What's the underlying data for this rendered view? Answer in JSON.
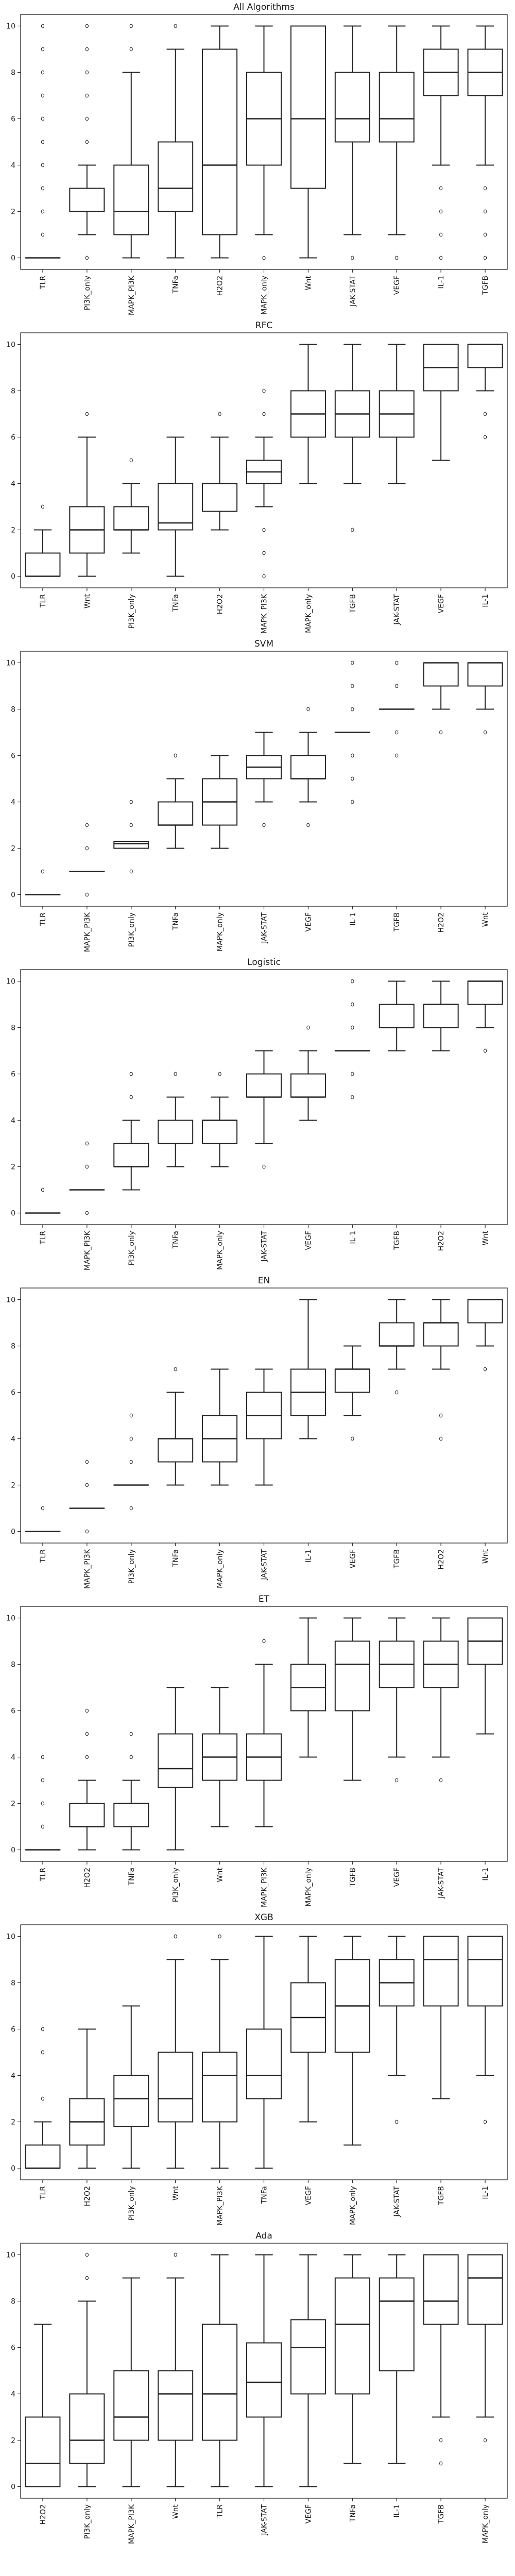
{
  "chart_data": [
    {
      "type": "box",
      "title": "All Algorithms",
      "ylim": [
        -0.5,
        10.5
      ],
      "yticks": [
        0,
        2,
        4,
        6,
        8,
        10
      ],
      "boxes": [
        {
          "label": "TLR",
          "whislo": 0,
          "q1": 0,
          "med": 0,
          "q3": 0,
          "whishi": 0,
          "fliers": [
            1,
            2,
            3,
            4,
            5,
            6,
            7,
            8,
            9,
            10
          ]
        },
        {
          "label": "PI3K_only",
          "whislo": 1,
          "q1": 2,
          "med": 2,
          "q3": 3,
          "whishi": 4,
          "fliers": [
            0,
            5,
            6,
            7,
            8,
            9,
            10
          ]
        },
        {
          "label": "MAPK_PI3K",
          "whislo": 0,
          "q1": 1,
          "med": 2,
          "q3": 4,
          "whishi": 8,
          "fliers": [
            9,
            10
          ]
        },
        {
          "label": "TNFa",
          "whislo": 0,
          "q1": 2,
          "med": 3,
          "q3": 5,
          "whishi": 9,
          "fliers": [
            10
          ]
        },
        {
          "label": "H2O2",
          "whislo": 0,
          "q1": 1,
          "med": 4,
          "q3": 9,
          "whishi": 10,
          "fliers": []
        },
        {
          "label": "MAPK_only",
          "whislo": 1,
          "q1": 4,
          "med": 6,
          "q3": 8,
          "whishi": 10,
          "fliers": [
            0
          ]
        },
        {
          "label": "Wnt",
          "whislo": 0,
          "q1": 3,
          "med": 6,
          "q3": 10,
          "whishi": 10,
          "fliers": []
        },
        {
          "label": "JAK-STAT",
          "whislo": 1,
          "q1": 5,
          "med": 6,
          "q3": 8,
          "whishi": 10,
          "fliers": [
            0
          ]
        },
        {
          "label": "VEGF",
          "whislo": 1,
          "q1": 5,
          "med": 6,
          "q3": 8,
          "whishi": 10,
          "fliers": [
            0
          ]
        },
        {
          "label": "IL-1",
          "whislo": 4,
          "q1": 7,
          "med": 8,
          "q3": 9,
          "whishi": 10,
          "fliers": [
            0,
            1,
            2,
            3
          ]
        },
        {
          "label": "TGFB",
          "whislo": 4,
          "q1": 7,
          "med": 8,
          "q3": 9,
          "whishi": 10,
          "fliers": [
            0,
            1,
            2,
            3
          ]
        }
      ]
    },
    {
      "type": "box",
      "title": "RFC",
      "ylim": [
        -0.5,
        10.5
      ],
      "yticks": [
        0,
        2,
        4,
        6,
        8,
        10
      ],
      "boxes": [
        {
          "label": "TLR",
          "whislo": 0,
          "q1": 0,
          "med": 0,
          "q3": 1,
          "whishi": 2,
          "fliers": [
            3
          ]
        },
        {
          "label": "Wnt",
          "whislo": 0,
          "q1": 1,
          "med": 2,
          "q3": 3,
          "whishi": 6,
          "fliers": [
            7
          ]
        },
        {
          "label": "PI3K_only",
          "whislo": 1,
          "q1": 2,
          "med": 2,
          "q3": 3,
          "whishi": 4,
          "fliers": [
            5
          ]
        },
        {
          "label": "TNFa",
          "whislo": 0,
          "q1": 2,
          "med": 2.3,
          "q3": 4,
          "whishi": 6,
          "fliers": []
        },
        {
          "label": "H2O2",
          "whislo": 2,
          "q1": 2.8,
          "med": 4,
          "q3": 4,
          "whishi": 6,
          "fliers": [
            7
          ]
        },
        {
          "label": "MAPK_PI3K",
          "whislo": 3,
          "q1": 4,
          "med": 4.5,
          "q3": 5,
          "whishi": 6,
          "fliers": [
            0,
            1,
            2,
            7,
            8
          ]
        },
        {
          "label": "MAPK_only",
          "whislo": 4,
          "q1": 6,
          "med": 7,
          "q3": 8,
          "whishi": 10,
          "fliers": []
        },
        {
          "label": "TGFB",
          "whislo": 4,
          "q1": 6,
          "med": 7,
          "q3": 8,
          "whishi": 10,
          "fliers": [
            2
          ]
        },
        {
          "label": "JAK-STAT",
          "whislo": 4,
          "q1": 6,
          "med": 7,
          "q3": 8,
          "whishi": 10,
          "fliers": []
        },
        {
          "label": "VEGF",
          "whislo": 5,
          "q1": 8,
          "med": 9,
          "q3": 10,
          "whishi": 10,
          "fliers": []
        },
        {
          "label": "IL-1",
          "whislo": 8,
          "q1": 9,
          "med": 10,
          "q3": 10,
          "whishi": 10,
          "fliers": [
            6,
            7
          ]
        }
      ]
    },
    {
      "type": "box",
      "title": "SVM",
      "ylim": [
        -0.5,
        10.5
      ],
      "yticks": [
        0,
        2,
        4,
        6,
        8,
        10
      ],
      "boxes": [
        {
          "label": "TLR",
          "whislo": 0,
          "q1": 0,
          "med": 0,
          "q3": 0,
          "whishi": 0,
          "fliers": [
            1
          ]
        },
        {
          "label": "MAPK_PI3K",
          "whislo": 1,
          "q1": 1,
          "med": 1,
          "q3": 1,
          "whishi": 1,
          "fliers": [
            0,
            2,
            3
          ]
        },
        {
          "label": "PI3K_only",
          "whislo": 2,
          "q1": 2,
          "med": 2.2,
          "q3": 2.3,
          "whishi": 2.3,
          "fliers": [
            1,
            3,
            4
          ]
        },
        {
          "label": "TNFa",
          "whislo": 2,
          "q1": 3,
          "med": 3,
          "q3": 4,
          "whishi": 5,
          "fliers": [
            6
          ]
        },
        {
          "label": "MAPK_only",
          "whislo": 2,
          "q1": 3,
          "med": 4,
          "q3": 5,
          "whishi": 6,
          "fliers": []
        },
        {
          "label": "JAK-STAT",
          "whislo": 4,
          "q1": 5,
          "med": 5.5,
          "q3": 6,
          "whishi": 7,
          "fliers": [
            3
          ]
        },
        {
          "label": "VEGF",
          "whislo": 4,
          "q1": 5,
          "med": 5,
          "q3": 6,
          "whishi": 7,
          "fliers": [
            3,
            8
          ]
        },
        {
          "label": "IL-1",
          "whislo": 7,
          "q1": 7,
          "med": 7,
          "q3": 7,
          "whishi": 7,
          "fliers": [
            4,
            5,
            6,
            8,
            9,
            10
          ]
        },
        {
          "label": "TGFB",
          "whislo": 8,
          "q1": 8,
          "med": 8,
          "q3": 8,
          "whishi": 8,
          "fliers": [
            6,
            7,
            9,
            10
          ]
        },
        {
          "label": "H2O2",
          "whislo": 8,
          "q1": 9,
          "med": 10,
          "q3": 10,
          "whishi": 10,
          "fliers": [
            7
          ]
        },
        {
          "label": "Wnt",
          "whislo": 8,
          "q1": 9,
          "med": 10,
          "q3": 10,
          "whishi": 10,
          "fliers": [
            7
          ]
        }
      ]
    },
    {
      "type": "box",
      "title": "Logistic",
      "ylim": [
        -0.5,
        10.5
      ],
      "yticks": [
        0,
        2,
        4,
        6,
        8,
        10
      ],
      "boxes": [
        {
          "label": "TLR",
          "whislo": 0,
          "q1": 0,
          "med": 0,
          "q3": 0,
          "whishi": 0,
          "fliers": [
            1
          ]
        },
        {
          "label": "MAPK_PI3K",
          "whislo": 1,
          "q1": 1,
          "med": 1,
          "q3": 1,
          "whishi": 1,
          "fliers": [
            0,
            2,
            3
          ]
        },
        {
          "label": "PI3K_only",
          "whislo": 1,
          "q1": 2,
          "med": 2,
          "q3": 3,
          "whishi": 4,
          "fliers": [
            5,
            6
          ]
        },
        {
          "label": "TNFa",
          "whislo": 2,
          "q1": 3,
          "med": 3,
          "q3": 4,
          "whishi": 5,
          "fliers": [
            6
          ]
        },
        {
          "label": "MAPK_only",
          "whislo": 2,
          "q1": 3,
          "med": 4,
          "q3": 4,
          "whishi": 5,
          "fliers": [
            6
          ]
        },
        {
          "label": "JAK-STAT",
          "whislo": 3,
          "q1": 5,
          "med": 5,
          "q3": 6,
          "whishi": 7,
          "fliers": [
            2
          ]
        },
        {
          "label": "VEGF",
          "whislo": 4,
          "q1": 5,
          "med": 5,
          "q3": 6,
          "whishi": 7,
          "fliers": [
            8
          ]
        },
        {
          "label": "IL-1",
          "whislo": 7,
          "q1": 7,
          "med": 7,
          "q3": 7,
          "whishi": 7,
          "fliers": [
            5,
            6,
            8,
            9,
            10
          ]
        },
        {
          "label": "TGFB",
          "whislo": 7,
          "q1": 8,
          "med": 8,
          "q3": 9,
          "whishi": 10,
          "fliers": []
        },
        {
          "label": "H2O2",
          "whislo": 7,
          "q1": 8,
          "med": 9,
          "q3": 9,
          "whishi": 10,
          "fliers": []
        },
        {
          "label": "Wnt",
          "whislo": 8,
          "q1": 9,
          "med": 10,
          "q3": 10,
          "whishi": 10,
          "fliers": [
            7
          ]
        }
      ]
    },
    {
      "type": "box",
      "title": "EN",
      "ylim": [
        -0.5,
        10.5
      ],
      "yticks": [
        0,
        2,
        4,
        6,
        8,
        10
      ],
      "boxes": [
        {
          "label": "TLR",
          "whislo": 0,
          "q1": 0,
          "med": 0,
          "q3": 0,
          "whishi": 0,
          "fliers": [
            1
          ]
        },
        {
          "label": "MAPK_PI3K",
          "whislo": 1,
          "q1": 1,
          "med": 1,
          "q3": 1,
          "whishi": 1,
          "fliers": [
            0,
            2,
            3
          ]
        },
        {
          "label": "PI3K_only",
          "whislo": 2,
          "q1": 2,
          "med": 2,
          "q3": 2,
          "whishi": 2,
          "fliers": [
            1,
            3,
            4,
            5
          ]
        },
        {
          "label": "TNFa",
          "whislo": 2,
          "q1": 3,
          "med": 4,
          "q3": 4,
          "whishi": 6,
          "fliers": [
            7
          ]
        },
        {
          "label": "MAPK_only",
          "whislo": 2,
          "q1": 3,
          "med": 4,
          "q3": 5,
          "whishi": 7,
          "fliers": []
        },
        {
          "label": "JAK-STAT",
          "whislo": 2,
          "q1": 4,
          "med": 5,
          "q3": 6,
          "whishi": 7,
          "fliers": []
        },
        {
          "label": "IL-1",
          "whislo": 4,
          "q1": 5,
          "med": 6,
          "q3": 7,
          "whishi": 10,
          "fliers": []
        },
        {
          "label": "VEGF",
          "whislo": 5,
          "q1": 6,
          "med": 7,
          "q3": 7,
          "whishi": 8,
          "fliers": [
            4
          ]
        },
        {
          "label": "TGFB",
          "whislo": 7,
          "q1": 8,
          "med": 8,
          "q3": 9,
          "whishi": 10,
          "fliers": [
            6
          ]
        },
        {
          "label": "H2O2",
          "whislo": 7,
          "q1": 8,
          "med": 9,
          "q3": 9,
          "whishi": 10,
          "fliers": [
            4,
            5
          ]
        },
        {
          "label": "Wnt",
          "whislo": 8,
          "q1": 9,
          "med": 10,
          "q3": 10,
          "whishi": 10,
          "fliers": [
            7
          ]
        }
      ]
    },
    {
      "type": "box",
      "title": "ET",
      "ylim": [
        -0.5,
        10.5
      ],
      "yticks": [
        0,
        2,
        4,
        6,
        8,
        10
      ],
      "boxes": [
        {
          "label": "TLR",
          "whislo": 0,
          "q1": 0,
          "med": 0,
          "q3": 0,
          "whishi": 0,
          "fliers": [
            1,
            2,
            3,
            4
          ]
        },
        {
          "label": "H2O2",
          "whislo": 0,
          "q1": 1,
          "med": 1,
          "q3": 2,
          "whishi": 3,
          "fliers": [
            4,
            5,
            6
          ]
        },
        {
          "label": "TNFa",
          "whislo": 0,
          "q1": 1,
          "med": 2,
          "q3": 2,
          "whishi": 3,
          "fliers": [
            4,
            5
          ]
        },
        {
          "label": "PI3K_only",
          "whislo": 0,
          "q1": 2.7,
          "med": 3.5,
          "q3": 5,
          "whishi": 7,
          "fliers": []
        },
        {
          "label": "Wnt",
          "whislo": 1,
          "q1": 3,
          "med": 4,
          "q3": 5,
          "whishi": 7,
          "fliers": []
        },
        {
          "label": "MAPK_PI3K",
          "whislo": 1,
          "q1": 3,
          "med": 4,
          "q3": 5,
          "whishi": 8,
          "fliers": [
            9
          ]
        },
        {
          "label": "MAPK_only",
          "whislo": 4,
          "q1": 6,
          "med": 7,
          "q3": 8,
          "whishi": 10,
          "fliers": []
        },
        {
          "label": "TGFB",
          "whislo": 3,
          "q1": 6,
          "med": 8,
          "q3": 9,
          "whishi": 10,
          "fliers": []
        },
        {
          "label": "VEGF",
          "whislo": 4,
          "q1": 7,
          "med": 8,
          "q3": 9,
          "whishi": 10,
          "fliers": [
            3
          ]
        },
        {
          "label": "JAK-STAT",
          "whislo": 4,
          "q1": 7,
          "med": 8,
          "q3": 9,
          "whishi": 10,
          "fliers": [
            3
          ]
        },
        {
          "label": "IL-1",
          "whislo": 5,
          "q1": 8,
          "med": 9,
          "q3": 10,
          "whishi": 10,
          "fliers": []
        }
      ]
    },
    {
      "type": "box",
      "title": "XGB",
      "ylim": [
        -0.5,
        10.5
      ],
      "yticks": [
        0,
        2,
        4,
        6,
        8,
        10
      ],
      "boxes": [
        {
          "label": "TLR",
          "whislo": 0,
          "q1": 0,
          "med": 0,
          "q3": 1,
          "whishi": 2,
          "fliers": [
            3,
            5,
            6
          ]
        },
        {
          "label": "H2O2",
          "whislo": 0,
          "q1": 1,
          "med": 2,
          "q3": 3,
          "whishi": 6,
          "fliers": []
        },
        {
          "label": "PI3K_only",
          "whislo": 0,
          "q1": 1.8,
          "med": 3,
          "q3": 4,
          "whishi": 7,
          "fliers": []
        },
        {
          "label": "Wnt",
          "whislo": 0,
          "q1": 2,
          "med": 3,
          "q3": 5,
          "whishi": 9,
          "fliers": [
            10
          ]
        },
        {
          "label": "MAPK_PI3K",
          "whislo": 0,
          "q1": 2,
          "med": 4,
          "q3": 5,
          "whishi": 9,
          "fliers": [
            10
          ]
        },
        {
          "label": "TNFa",
          "whislo": 0,
          "q1": 3,
          "med": 4,
          "q3": 6,
          "whishi": 10,
          "fliers": []
        },
        {
          "label": "VEGF",
          "whislo": 2,
          "q1": 5,
          "med": 6.5,
          "q3": 8,
          "whishi": 10,
          "fliers": []
        },
        {
          "label": "MAPK_only",
          "whislo": 1,
          "q1": 5,
          "med": 7,
          "q3": 9,
          "whishi": 10,
          "fliers": []
        },
        {
          "label": "JAK-STAT",
          "whislo": 4,
          "q1": 7,
          "med": 8,
          "q3": 9,
          "whishi": 10,
          "fliers": [
            2
          ]
        },
        {
          "label": "TGFB",
          "whislo": 3,
          "q1": 7,
          "med": 9,
          "q3": 10,
          "whishi": 10,
          "fliers": []
        },
        {
          "label": "IL-1",
          "whislo": 4,
          "q1": 7,
          "med": 9,
          "q3": 10,
          "whishi": 10,
          "fliers": [
            2
          ]
        }
      ]
    },
    {
      "type": "box",
      "title": "Ada",
      "ylim": [
        -0.5,
        10.5
      ],
      "yticks": [
        0,
        2,
        4,
        6,
        8,
        10
      ],
      "boxes": [
        {
          "label": "H2O2",
          "whislo": 0,
          "q1": 0,
          "med": 1,
          "q3": 3,
          "whishi": 7,
          "fliers": []
        },
        {
          "label": "PI3K_only",
          "whislo": 0,
          "q1": 1,
          "med": 2,
          "q3": 4,
          "whishi": 8,
          "fliers": [
            9,
            10
          ]
        },
        {
          "label": "MAPK_PI3K",
          "whislo": 0,
          "q1": 2,
          "med": 3,
          "q3": 5,
          "whishi": 9,
          "fliers": []
        },
        {
          "label": "Wnt",
          "whislo": 0,
          "q1": 2,
          "med": 4,
          "q3": 5,
          "whishi": 9,
          "fliers": [
            10
          ]
        },
        {
          "label": "TLR",
          "whislo": 0,
          "q1": 2,
          "med": 4,
          "q3": 7,
          "whishi": 10,
          "fliers": []
        },
        {
          "label": "JAK-STAT",
          "whislo": 0,
          "q1": 3,
          "med": 4.5,
          "q3": 6.2,
          "whishi": 10,
          "fliers": []
        },
        {
          "label": "VEGF",
          "whislo": 0,
          "q1": 4,
          "med": 6,
          "q3": 7.2,
          "whishi": 10,
          "fliers": []
        },
        {
          "label": "TNFa",
          "whislo": 1,
          "q1": 4,
          "med": 7,
          "q3": 9,
          "whishi": 10,
          "fliers": []
        },
        {
          "label": "IL-1",
          "whislo": 1,
          "q1": 5,
          "med": 8,
          "q3": 9,
          "whishi": 10,
          "fliers": []
        },
        {
          "label": "TGFB",
          "whislo": 3,
          "q1": 7,
          "med": 8,
          "q3": 10,
          "whishi": 10,
          "fliers": [
            1,
            2
          ]
        },
        {
          "label": "MAPK_only",
          "whislo": 3,
          "q1": 7,
          "med": 9,
          "q3": 10,
          "whishi": 10,
          "fliers": [
            2
          ]
        }
      ]
    }
  ]
}
